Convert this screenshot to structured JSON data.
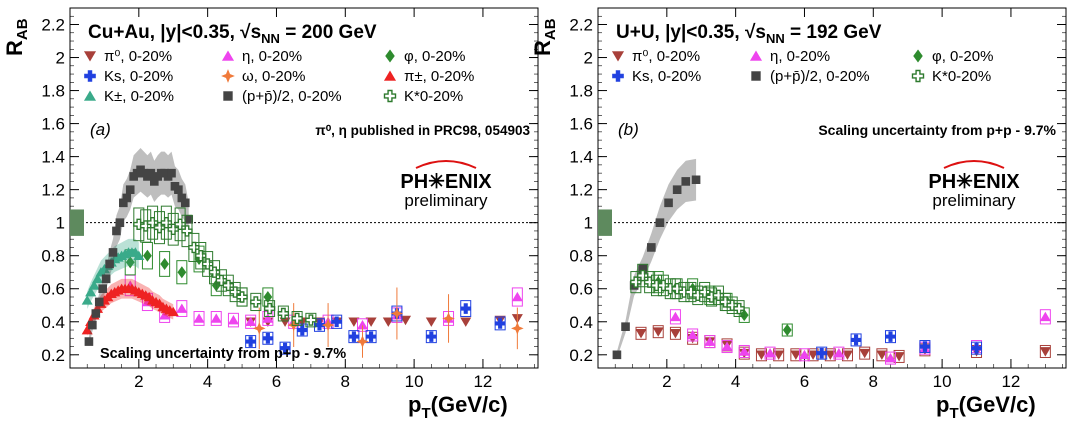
{
  "chart_data": [
    {
      "type": "scatter",
      "panel_label": "(a)",
      "title": "Cu+Au, |y|<0.35,",
      "title_energy_symbol": "√s",
      "title_energy_sub": "NN",
      "title_energy_value": "= 200 GeV",
      "ylabel": "R",
      "ylabel_sub": "AB",
      "xlabel": "p",
      "xlabel_sub": "T",
      "xlabel_unit": "(GeV/c)",
      "xlim": [
        0,
        13.6
      ],
      "ylim": [
        0.12,
        2.3
      ],
      "xticks": [
        2,
        4,
        6,
        8,
        10,
        12
      ],
      "yticks": [
        0.2,
        0.4,
        0.6,
        0.8,
        1,
        1.2,
        1.4,
        1.6,
        1.8,
        2,
        2.2
      ],
      "reference_line": 1,
      "global_uncertainty_box": [
        0.92,
        1.08
      ],
      "annotations": [
        "π⁰, η published in PRC98, 054903",
        "Scaling uncertainty from p+p - 9.7%"
      ],
      "logo": {
        "name": "PH✳ENIX",
        "sub": "preliminary"
      },
      "legend": [
        {
          "label": "π⁰, 0-20%",
          "marker": "tri-down",
          "color": "#a8403a"
        },
        {
          "label": "η, 0-20%",
          "marker": "tri-up",
          "color": "#ee44ee"
        },
        {
          "label": "φ, 0-20%",
          "marker": "diamond",
          "color": "#2e8b2e"
        },
        {
          "label": "Ks, 0-20%",
          "marker": "cross",
          "color": "#2040e0"
        },
        {
          "label": "ω, 0-20%",
          "marker": "star",
          "color": "#f07a3a"
        },
        {
          "label": "π±, 0-20%",
          "marker": "tri-up",
          "color": "#ee2222"
        },
        {
          "label": "K±, 0-20%",
          "marker": "tri-up",
          "color": "#3aaa8a"
        },
        {
          "label": "(p+p̄)/2, 0-20%",
          "marker": "square",
          "color": "#444444"
        },
        {
          "label": "K*0-20%",
          "marker": "open-cross",
          "color": "#2e7a2e"
        }
      ],
      "series": [
        {
          "name": "π⁰, 0-20%",
          "marker": "tri-down",
          "color": "#a8403a",
          "sys": "none",
          "x": [
            5.25,
            5.75,
            6.25,
            6.75,
            7.25,
            7.75,
            8.25,
            8.75,
            9.25,
            9.75,
            10.5,
            11.5,
            12.5,
            13.0
          ],
          "y": [
            0.4,
            0.4,
            0.4,
            0.4,
            0.4,
            0.4,
            0.4,
            0.4,
            0.4,
            0.41,
            0.4,
            0.4,
            0.41,
            0.42
          ]
        },
        {
          "name": "η, 0-20%",
          "marker": "tri-up",
          "color": "#ee44ee",
          "sys": "open",
          "x": [
            1.75,
            2.25,
            2.75,
            3.25,
            3.75,
            4.25,
            4.75,
            5.25,
            5.75,
            6.5,
            7.5,
            8.5,
            9.5,
            11.0,
            13.0
          ],
          "y": [
            0.62,
            0.52,
            0.44,
            0.48,
            0.42,
            0.42,
            0.41,
            0.4,
            0.42,
            0.4,
            0.4,
            0.38,
            0.44,
            0.42,
            0.55
          ]
        },
        {
          "name": "φ, 0-20%",
          "marker": "diamond",
          "color": "#2e8b2e",
          "sys": "open",
          "x": [
            1.75,
            2.25,
            2.75,
            3.25,
            3.75,
            4.25,
            5.0,
            5.75
          ],
          "y": [
            0.76,
            0.8,
            0.75,
            0.7,
            0.78,
            0.62,
            0.55,
            0.55
          ]
        },
        {
          "name": "Ks, 0-20%",
          "marker": "cross",
          "color": "#2040e0",
          "sys": "open",
          "x": [
            5.25,
            5.75,
            6.25,
            6.75,
            7.25,
            7.75,
            8.25,
            8.75,
            9.5,
            10.5,
            11.5,
            12.5
          ],
          "y": [
            0.28,
            0.3,
            0.24,
            0.35,
            0.38,
            0.4,
            0.31,
            0.31,
            0.45,
            0.31,
            0.48,
            0.39
          ]
        },
        {
          "name": "ω, 0-20%",
          "marker": "star",
          "color": "#f07a3a",
          "sys": "error",
          "x": [
            5.5,
            6.5,
            7.5,
            8.5,
            9.5,
            11.0,
            13.0
          ],
          "y": [
            0.36,
            0.38,
            0.38,
            0.28,
            0.45,
            0.42,
            0.36
          ]
        },
        {
          "name": "π±, 0-20%",
          "marker": "tri-up",
          "color": "#ee2222",
          "sys": "band",
          "x": [
            0.5,
            0.6,
            0.7,
            0.8,
            0.9,
            1.0,
            1.1,
            1.2,
            1.3,
            1.4,
            1.5,
            1.6,
            1.7,
            1.8,
            1.9,
            2.0,
            2.1,
            2.2,
            2.3,
            2.4,
            2.5,
            2.6,
            2.7,
            2.8,
            2.9,
            3.0
          ],
          "y": [
            0.35,
            0.4,
            0.44,
            0.48,
            0.51,
            0.53,
            0.55,
            0.57,
            0.58,
            0.59,
            0.6,
            0.6,
            0.6,
            0.6,
            0.59,
            0.58,
            0.57,
            0.56,
            0.55,
            0.53,
            0.52,
            0.51,
            0.49,
            0.48,
            0.47,
            0.46
          ]
        },
        {
          "name": "K±, 0-20%",
          "marker": "tri-up",
          "color": "#3aaa8a",
          "sys": "band",
          "x": [
            0.5,
            0.6,
            0.7,
            0.8,
            0.9,
            1.0,
            1.1,
            1.2,
            1.3,
            1.4,
            1.5,
            1.6,
            1.7,
            1.8,
            1.9,
            2.0
          ],
          "y": [
            0.53,
            0.58,
            0.62,
            0.66,
            0.7,
            0.72,
            0.74,
            0.76,
            0.78,
            0.79,
            0.8,
            0.81,
            0.82,
            0.82,
            0.82,
            0.8
          ]
        },
        {
          "name": "(p+p̄)/2, 0-20%",
          "marker": "square",
          "color": "#444444",
          "sys": "band",
          "x": [
            0.55,
            0.65,
            0.75,
            0.85,
            0.95,
            1.05,
            1.15,
            1.25,
            1.35,
            1.45,
            1.55,
            1.65,
            1.75,
            1.85,
            1.95,
            2.05,
            2.15,
            2.25,
            2.35,
            2.45,
            2.55,
            2.65,
            2.75,
            2.85,
            2.95,
            3.05,
            3.15,
            3.25,
            3.35,
            3.45
          ],
          "y": [
            0.28,
            0.38,
            0.45,
            0.52,
            0.6,
            0.66,
            0.75,
            0.82,
            0.95,
            1.0,
            1.12,
            1.15,
            1.2,
            1.28,
            1.3,
            1.32,
            1.3,
            1.28,
            1.3,
            1.25,
            1.28,
            1.3,
            1.3,
            1.28,
            1.3,
            1.22,
            1.2,
            1.15,
            1.12,
            1.02
          ]
        },
        {
          "name": "K*0-20%",
          "marker": "open-cross",
          "color": "#2e7a2e",
          "sys": "open",
          "x": [
            2.0,
            2.2,
            2.4,
            2.6,
            2.8,
            3.0,
            3.2,
            3.4,
            3.6,
            3.8,
            4.0,
            4.2,
            4.4,
            4.6,
            4.8,
            5.0,
            5.4,
            5.8,
            6.2,
            6.6,
            7.0
          ],
          "y": [
            0.99,
            0.98,
            1.0,
            0.97,
            1.0,
            0.96,
            0.99,
            0.95,
            0.85,
            0.8,
            0.75,
            0.7,
            0.65,
            0.62,
            0.58,
            0.55,
            0.52,
            0.48,
            0.45,
            0.42,
            0.41
          ]
        }
      ]
    },
    {
      "type": "scatter",
      "panel_label": "(b)",
      "title": "U+U, |y|<0.35,",
      "title_energy_symbol": "√s",
      "title_energy_sub": "NN",
      "title_energy_value": "= 192 GeV",
      "ylabel": "R",
      "ylabel_sub": "AB",
      "xlabel": "p",
      "xlabel_sub": "T",
      "xlabel_unit": "(GeV/c)",
      "xlim": [
        0,
        13.6
      ],
      "ylim": [
        0.12,
        2.3
      ],
      "xticks": [
        2,
        4,
        6,
        8,
        10,
        12
      ],
      "yticks": [
        0.2,
        0.4,
        0.6,
        0.8,
        1,
        1.2,
        1.4,
        1.6,
        1.8,
        2,
        2.2
      ],
      "reference_line": 1,
      "global_uncertainty_box": [
        0.92,
        1.08
      ],
      "annotations": [
        "Scaling uncertainty from p+p - 9.7%"
      ],
      "logo": {
        "name": "PH✳ENIX",
        "sub": "preliminary"
      },
      "legend": [
        {
          "label": "π⁰, 0-20%",
          "marker": "tri-down",
          "color": "#a8403a"
        },
        {
          "label": "η, 0-20%",
          "marker": "tri-up",
          "color": "#ee44ee"
        },
        {
          "label": "φ, 0-20%",
          "marker": "diamond",
          "color": "#2e8b2e"
        },
        {
          "label": "Ks, 0-20%",
          "marker": "cross",
          "color": "#2040e0"
        },
        {
          "label": "(p+p̄)/2, 0-20%",
          "marker": "square",
          "color": "#444444"
        },
        {
          "label": "K*0-20%",
          "marker": "open-cross",
          "color": "#2e7a2e"
        }
      ],
      "series": [
        {
          "name": "π⁰, 0-20%",
          "marker": "tri-down",
          "color": "#a8403a",
          "sys": "open",
          "x": [
            1.25,
            1.75,
            2.25,
            2.75,
            3.25,
            3.75,
            4.25,
            4.75,
            5.25,
            5.75,
            6.25,
            6.75,
            7.25,
            7.75,
            8.25,
            8.75,
            9.5,
            11.0,
            13.0
          ],
          "y": [
            0.33,
            0.34,
            0.33,
            0.3,
            0.28,
            0.26,
            0.21,
            0.2,
            0.2,
            0.2,
            0.2,
            0.2,
            0.2,
            0.21,
            0.2,
            0.19,
            0.23,
            0.22,
            0.22
          ]
        },
        {
          "name": "η, 0-20%",
          "marker": "tri-up",
          "color": "#ee44ee",
          "sys": "open",
          "x": [
            2.25,
            2.75,
            3.25,
            3.75,
            4.25,
            5.0,
            6.0,
            7.0,
            8.5,
            9.5,
            11.0,
            13.0
          ],
          "y": [
            0.43,
            0.32,
            0.28,
            0.25,
            0.22,
            0.21,
            0.2,
            0.21,
            0.18,
            0.24,
            0.25,
            0.43
          ]
        },
        {
          "name": "φ, 0-20%",
          "marker": "diamond",
          "color": "#2e8b2e",
          "sys": "open",
          "x": [
            1.75,
            2.25,
            2.75,
            3.25,
            3.75,
            4.25,
            5.5
          ],
          "y": [
            0.64,
            0.6,
            0.6,
            0.56,
            0.52,
            0.44,
            0.35
          ]
        },
        {
          "name": "Ks, 0-20%",
          "marker": "cross",
          "color": "#2040e0",
          "sys": "open",
          "x": [
            6.5,
            7.5,
            8.5,
            9.5,
            11.0
          ],
          "y": [
            0.21,
            0.29,
            0.31,
            0.25,
            0.24
          ]
        },
        {
          "name": "(p+p̄)/2, 0-20%",
          "marker": "square",
          "color": "#444444",
          "sys": "band",
          "x": [
            0.55,
            0.8,
            1.05,
            1.3,
            1.55,
            1.8,
            2.05,
            2.3,
            2.55,
            2.85
          ],
          "y": [
            0.2,
            0.37,
            0.62,
            0.72,
            0.85,
            1.0,
            1.12,
            1.2,
            1.25,
            1.26
          ]
        },
        {
          "name": "K*0-20%",
          "marker": "open-cross",
          "color": "#2e7a2e",
          "sys": "open",
          "x": [
            1.1,
            1.3,
            1.5,
            1.7,
            1.9,
            2.1,
            2.3,
            2.5,
            2.7,
            2.9,
            3.1,
            3.3,
            3.5,
            3.7,
            3.9,
            4.1
          ],
          "y": [
            0.64,
            0.68,
            0.64,
            0.62,
            0.62,
            0.6,
            0.6,
            0.58,
            0.58,
            0.56,
            0.58,
            0.55,
            0.56,
            0.52,
            0.5,
            0.48
          ]
        }
      ]
    }
  ]
}
